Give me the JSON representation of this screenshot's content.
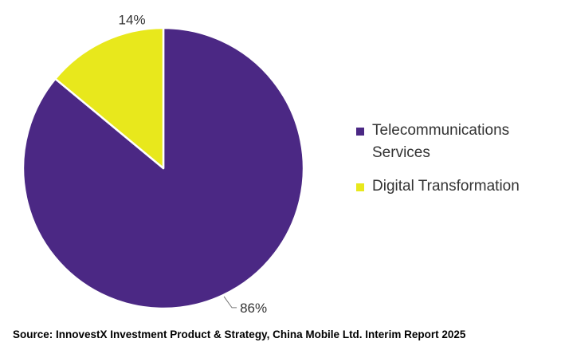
{
  "chart_data": {
    "type": "pie",
    "categories": [
      "Telecommunications Services",
      "Digital Transformation"
    ],
    "values": [
      86,
      14
    ],
    "value_labels": [
      "86%",
      "14%"
    ],
    "colors": [
      "#4b2884",
      "#e8e81c"
    ],
    "legend_position": "right",
    "start": "12 o'clock, clockwise"
  },
  "legend": {
    "items": [
      {
        "label": "Telecommunications Services",
        "color": "#4b2884"
      },
      {
        "label": "Digital Transformation",
        "color": "#e8e81c"
      }
    ]
  },
  "source": "Source: InnovestX Investment Product & Strategy, China Mobile Ltd. Interim Report 2025"
}
